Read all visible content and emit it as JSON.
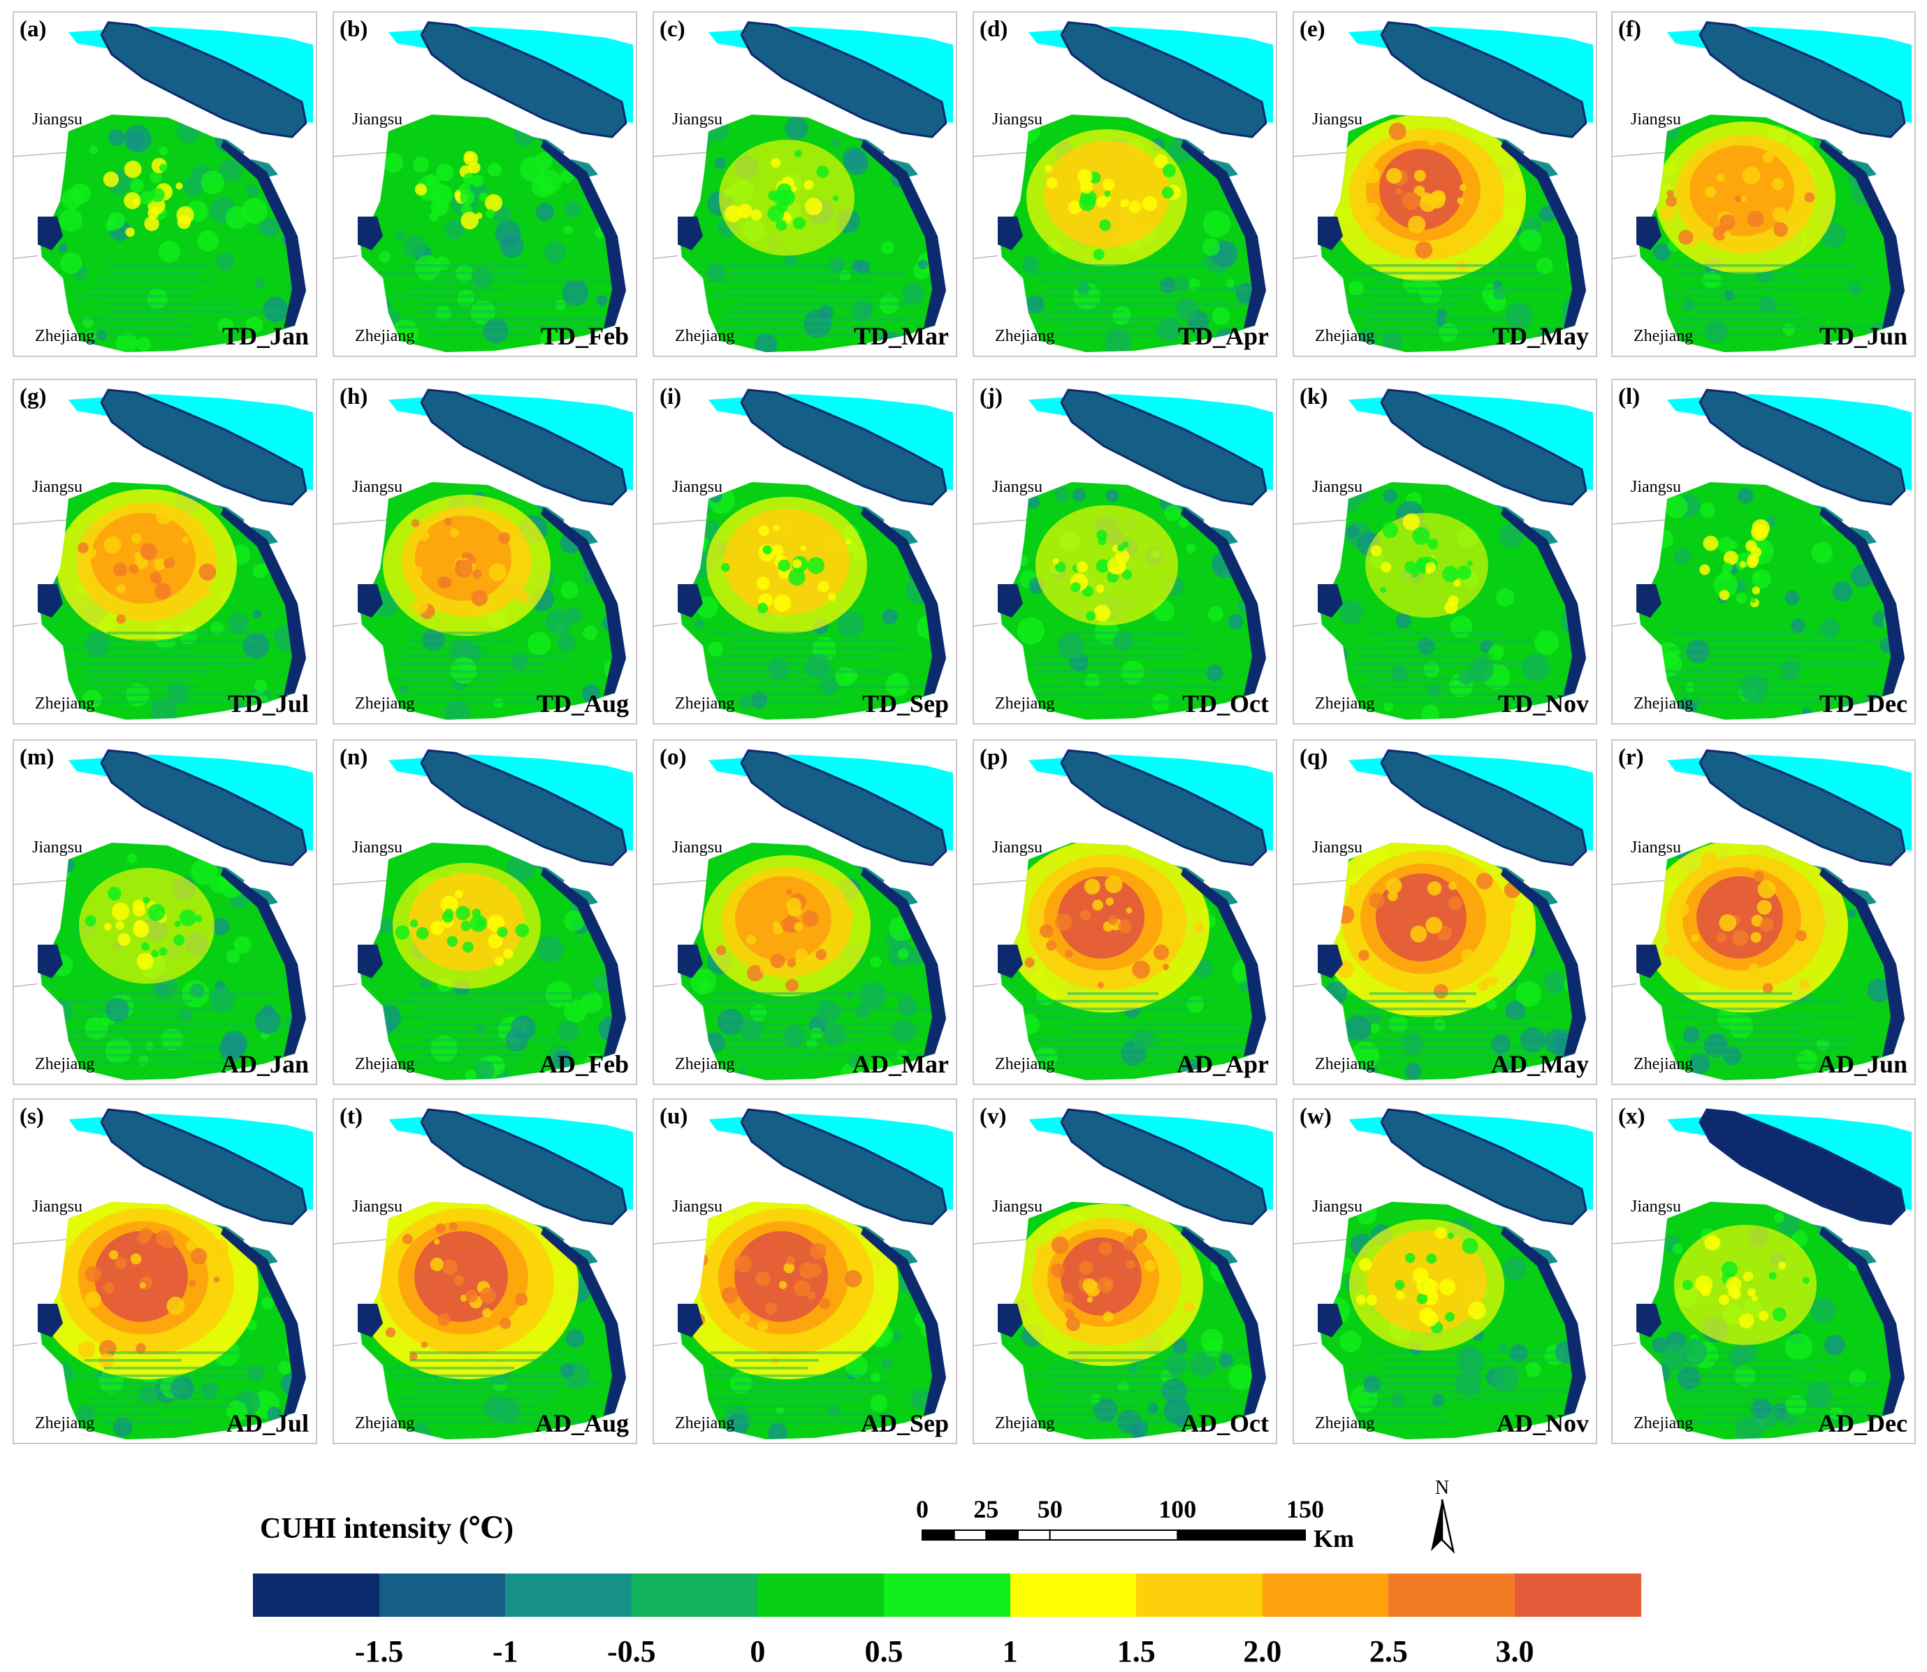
{
  "map_data": {
    "region_labels": {
      "north": "Jiangsu",
      "south": "Zhejiang"
    },
    "panels": [
      {
        "label": "(a)",
        "title": "TD_Jan",
        "intensity": 0.15
      },
      {
        "label": "(b)",
        "title": "TD_Feb",
        "intensity": 0.1
      },
      {
        "label": "(c)",
        "title": "TD_Mar",
        "intensity": 0.3
      },
      {
        "label": "(d)",
        "title": "TD_Apr",
        "intensity": 0.5
      },
      {
        "label": "(e)",
        "title": "TD_May",
        "intensity": 0.8
      },
      {
        "label": "(f)",
        "title": "TD_Jun",
        "intensity": 0.65
      },
      {
        "label": "(g)",
        "title": "TD_Jul",
        "intensity": 0.65
      },
      {
        "label": "(h)",
        "title": "TD_Aug",
        "intensity": 0.55
      },
      {
        "label": "(i)",
        "title": "TD_Sep",
        "intensity": 0.5
      },
      {
        "label": "(j)",
        "title": "TD_Oct",
        "intensity": 0.35
      },
      {
        "label": "(k)",
        "title": "TD_Nov",
        "intensity": 0.2
      },
      {
        "label": "(l)",
        "title": "TD_Dec",
        "intensity": 0.1
      },
      {
        "label": "(m)",
        "title": "AD_Jan",
        "intensity": 0.3
      },
      {
        "label": "(n)",
        "title": "AD_Feb",
        "intensity": 0.4
      },
      {
        "label": "(o)",
        "title": "AD_Mar",
        "intensity": 0.55
      },
      {
        "label": "(p)",
        "title": "AD_Apr",
        "intensity": 0.85
      },
      {
        "label": "(q)",
        "title": "AD_May",
        "intensity": 0.95
      },
      {
        "label": "(r)",
        "title": "AD_Jun",
        "intensity": 0.85
      },
      {
        "label": "(s)",
        "title": "AD_Jul",
        "intensity": 1.0
      },
      {
        "label": "(t)",
        "title": "AD_Aug",
        "intensity": 1.0
      },
      {
        "label": "(u)",
        "title": "AD_Sep",
        "intensity": 1.0
      },
      {
        "label": "(v)",
        "title": "AD_Oct",
        "intensity": 0.75
      },
      {
        "label": "(w)",
        "title": "AD_Nov",
        "intensity": 0.45
      },
      {
        "label": "(x)",
        "title": "AD_Dec",
        "intensity": 0.35
      }
    ],
    "legend": {
      "title": "CUHI intensity (℃)",
      "colors": [
        "#0d2a6e",
        "#155f86",
        "#16918a",
        "#12b15c",
        "#07cf14",
        "#11f01a",
        "#fefe04",
        "#fdd00b",
        "#fda20d",
        "#f27c26",
        "#e55c3a"
      ],
      "ticks": [
        "-1.5",
        "-1",
        "-0.5",
        "0",
        "0.5",
        "1",
        "1.5",
        "2.0",
        "2.5",
        "3.0"
      ]
    },
    "scale_bar": {
      "ticks": [
        "0",
        "25",
        "50",
        "100",
        "150"
      ],
      "unit": "Km"
    },
    "north_arrow": "N",
    "water_color": "#00ffff"
  }
}
